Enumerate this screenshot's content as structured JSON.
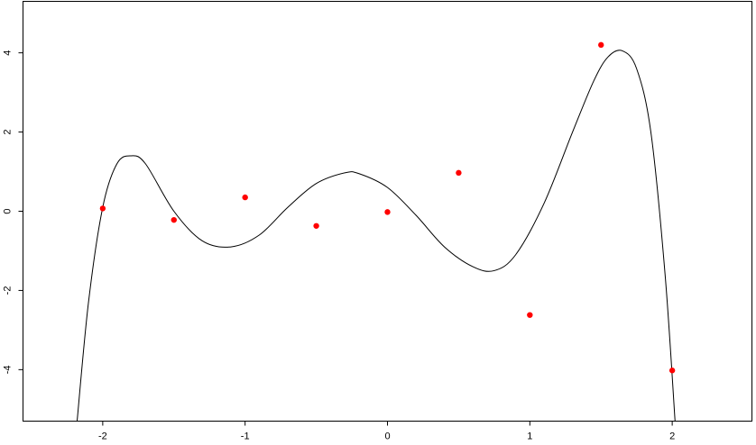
{
  "chart_data": {
    "type": "scatter",
    "title": "",
    "xlabel": "",
    "ylabel": "",
    "xlim": [
      -2.56,
      2.56
    ],
    "ylim": [
      -5.3,
      5.3
    ],
    "x_ticks": [
      -2,
      -1,
      0,
      1,
      2
    ],
    "y_ticks": [
      -4,
      -2,
      0,
      2,
      4
    ],
    "x_tick_labels": [
      "-2",
      "-1",
      "0",
      "1",
      "2"
    ],
    "y_tick_labels": [
      "-4",
      "-2",
      "0",
      "2",
      "4"
    ],
    "grid": false,
    "series": [
      {
        "kind": "points",
        "color": "#ff0000",
        "points": [
          {
            "x": -2.0,
            "y": 0.07
          },
          {
            "x": -1.5,
            "y": -0.22
          },
          {
            "x": -1.0,
            "y": 0.35
          },
          {
            "x": -0.5,
            "y": -0.37
          },
          {
            "x": 0.0,
            "y": -0.02
          },
          {
            "x": 0.5,
            "y": 0.97
          },
          {
            "x": 1.0,
            "y": -2.62
          },
          {
            "x": 1.5,
            "y": 4.2
          },
          {
            "x": 2.0,
            "y": -4.02
          }
        ]
      },
      {
        "kind": "curve",
        "color": "#000000",
        "points": [
          {
            "x": -2.18,
            "y": -5.3
          },
          {
            "x": -2.1,
            "y": -2.3
          },
          {
            "x": -2.0,
            "y": 0.1
          },
          {
            "x": -1.9,
            "y": 1.2
          },
          {
            "x": -1.8,
            "y": 1.4
          },
          {
            "x": -1.7,
            "y": 1.2
          },
          {
            "x": -1.5,
            "y": 0.0
          },
          {
            "x": -1.3,
            "y": -0.75
          },
          {
            "x": -1.1,
            "y": -0.9
          },
          {
            "x": -0.9,
            "y": -0.6
          },
          {
            "x": -0.7,
            "y": 0.1
          },
          {
            "x": -0.5,
            "y": 0.7
          },
          {
            "x": -0.3,
            "y": 0.97
          },
          {
            "x": -0.2,
            "y": 0.95
          },
          {
            "x": 0.0,
            "y": 0.6
          },
          {
            "x": 0.2,
            "y": -0.1
          },
          {
            "x": 0.4,
            "y": -0.9
          },
          {
            "x": 0.6,
            "y": -1.4
          },
          {
            "x": 0.75,
            "y": -1.5
          },
          {
            "x": 0.9,
            "y": -1.1
          },
          {
            "x": 1.1,
            "y": 0.2
          },
          {
            "x": 1.3,
            "y": 2.0
          },
          {
            "x": 1.45,
            "y": 3.3
          },
          {
            "x": 1.55,
            "y": 3.9
          },
          {
            "x": 1.65,
            "y": 4.05
          },
          {
            "x": 1.75,
            "y": 3.6
          },
          {
            "x": 1.85,
            "y": 2.0
          },
          {
            "x": 1.95,
            "y": -1.6
          },
          {
            "x": 2.02,
            "y": -5.3
          }
        ]
      }
    ]
  }
}
